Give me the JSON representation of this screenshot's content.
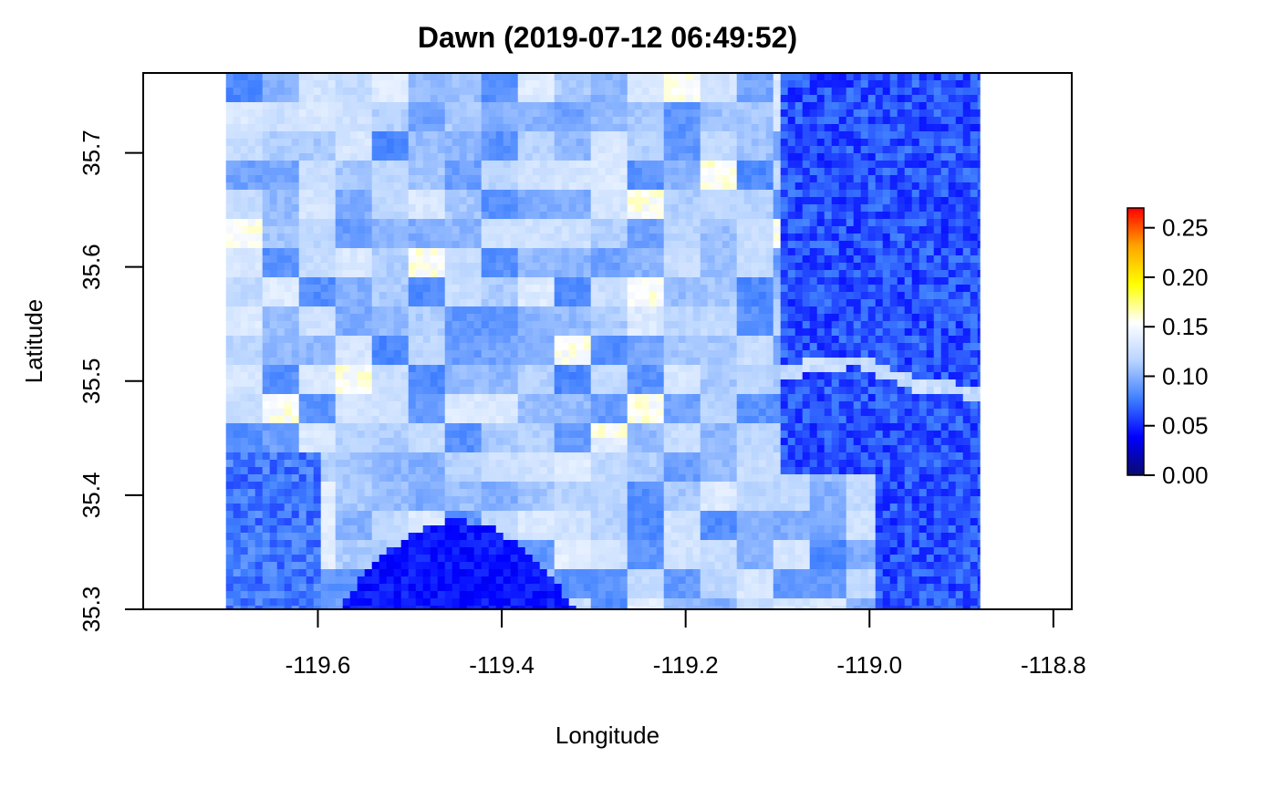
{
  "chart_data": {
    "type": "heatmap",
    "title": "Dawn (2019-07-12 06:49:52)",
    "xlabel": "Longitude",
    "ylabel": "Latitude",
    "xlim": [
      -119.79,
      -118.78
    ],
    "ylim": [
      35.3,
      35.77
    ],
    "x_ticks": [
      -119.6,
      -119.4,
      -119.2,
      -119.0,
      -118.8
    ],
    "x_tick_labels": [
      "-119.6",
      "-119.4",
      "-119.2",
      "-119.0",
      "-118.8"
    ],
    "y_ticks": [
      35.3,
      35.4,
      35.5,
      35.6,
      35.7
    ],
    "y_tick_labels": [
      "35.3",
      "35.4",
      "35.5",
      "35.6",
      "35.7"
    ],
    "raster_extent": {
      "lon": [
        -119.7,
        -118.88
      ],
      "lat": [
        35.3,
        35.77
      ]
    },
    "colorbar": {
      "range": [
        0.0,
        0.27
      ],
      "ticks": [
        0.0,
        0.05,
        0.1,
        0.15,
        0.2,
        0.25
      ],
      "tick_labels": [
        "0.00",
        "0.05",
        "0.10",
        "0.15",
        "0.20",
        "0.25"
      ],
      "colors": [
        "#0a0a6e",
        "#0000ff",
        "#3f7fff",
        "#b8d4ff",
        "#ffffff",
        "#ffff00",
        "#ffa500",
        "#ff0000"
      ]
    },
    "features": {
      "mountains_lon_min": -119.1,
      "dark_basin": {
        "lon": [
          -119.58,
          -119.32
        ],
        "lat": [
          35.3,
          35.38
        ]
      },
      "river_points": [
        [
          -119.1,
          35.51
        ],
        [
          -119.02,
          35.52
        ],
        [
          -118.96,
          35.5
        ],
        [
          -118.88,
          35.49
        ]
      ]
    },
    "grid": false,
    "legend": "right"
  }
}
